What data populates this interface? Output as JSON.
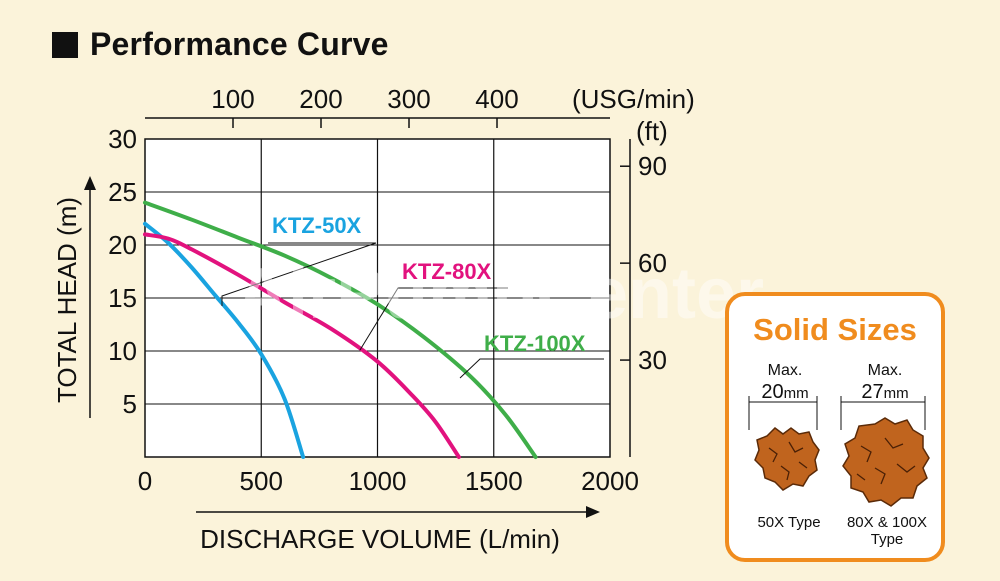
{
  "title": "Performance Curve",
  "watermark": "AirPumpCenter",
  "chart_data": {
    "type": "line",
    "xlabel": "DISCHARGE VOLUME (L/min)",
    "ylabel": "TOTAL HEAD (m)",
    "xlim": [
      0,
      2000
    ],
    "ylim": [
      0,
      30
    ],
    "x_ticks": [
      0,
      500,
      1000,
      1500,
      2000
    ],
    "y_ticks": [
      5,
      10,
      15,
      20,
      25,
      30
    ],
    "x2_label": "(USG/min)",
    "x2_ticks": [
      100,
      200,
      300,
      400
    ],
    "y2_label": "(ft)",
    "y2_ticks": [
      30,
      60,
      90
    ],
    "grid": true,
    "series": [
      {
        "name": "KTZ-50X",
        "color": "#1aa3e0",
        "x": [
          0,
          100,
          200,
          300,
          400,
          500,
          600,
          680
        ],
        "y": [
          22,
          20.2,
          17.9,
          15.3,
          12.7,
          9.7,
          5.5,
          0
        ]
      },
      {
        "name": "KTZ-80X",
        "color": "#e2127e",
        "x": [
          0,
          100,
          200,
          400,
          600,
          800,
          1000,
          1150,
          1250,
          1350
        ],
        "y": [
          21,
          20.6,
          19.6,
          17.2,
          14.6,
          12.1,
          9,
          5.8,
          3.3,
          0
        ]
      },
      {
        "name": "KTZ-100X",
        "color": "#3fae49",
        "x": [
          0,
          200,
          400,
          600,
          800,
          1000,
          1200,
          1400,
          1550,
          1680
        ],
        "y": [
          24,
          22.4,
          20.7,
          19,
          16.9,
          14.4,
          11.3,
          7.6,
          4,
          0
        ]
      }
    ]
  },
  "solid_sizes": {
    "title": "Solid Sizes",
    "items": [
      {
        "max_label": "Max.",
        "size": "20",
        "unit": "mm",
        "type": "50X Type",
        "type_line2": ""
      },
      {
        "max_label": "Max.",
        "size": "27",
        "unit": "mm",
        "type": "80X & 100X",
        "type_line2": "Type"
      }
    ],
    "solid_color": "#c0641e"
  }
}
